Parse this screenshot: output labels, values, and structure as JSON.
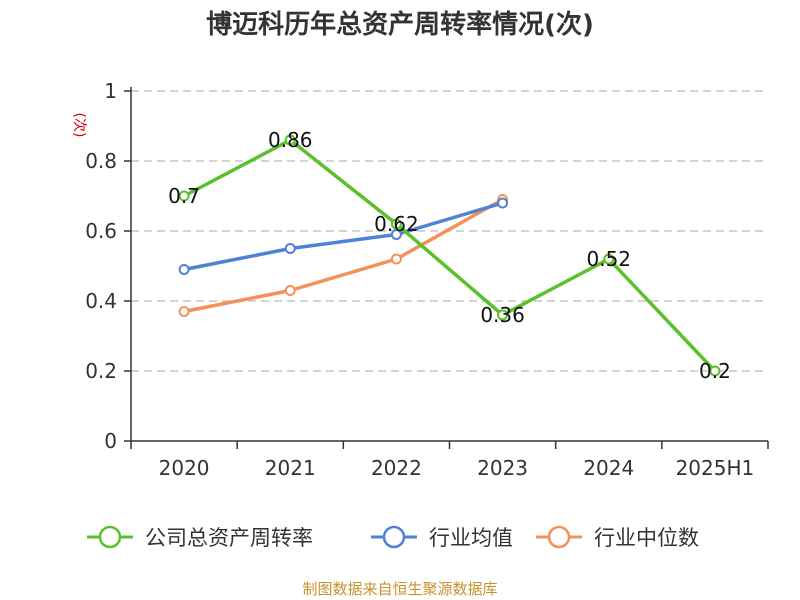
{
  "chart_data": {
    "type": "line",
    "title": "博迈科历年总资产周转率情况(次)",
    "ylabel": "(次)",
    "xlabel": "",
    "categories": [
      "2020",
      "2021",
      "2022",
      "2023",
      "2024",
      "2025H1"
    ],
    "ylim": [
      0,
      1
    ],
    "yticks": [
      "0",
      "0.2",
      "0.4",
      "0.6",
      "0.8",
      "1"
    ],
    "grid": "horizontal-dashed",
    "legend_position": "bottom",
    "series": [
      {
        "name": "公司总资产周转率",
        "color": "#5ac12a",
        "values": [
          0.7,
          0.86,
          0.62,
          0.36,
          0.52,
          0.2
        ],
        "labels": [
          "0.7",
          "0.86",
          "0.62",
          "0.36",
          "0.52",
          "0.2"
        ]
      },
      {
        "name": "行业均值",
        "color": "#4f81d6",
        "values": [
          0.49,
          0.55,
          0.59,
          0.68,
          null,
          null
        ]
      },
      {
        "name": "行业中位数",
        "color": "#f4905a",
        "values": [
          0.37,
          0.43,
          0.52,
          0.69,
          null,
          null
        ]
      }
    ],
    "source": "制图数据来自恒生聚源数据库"
  }
}
